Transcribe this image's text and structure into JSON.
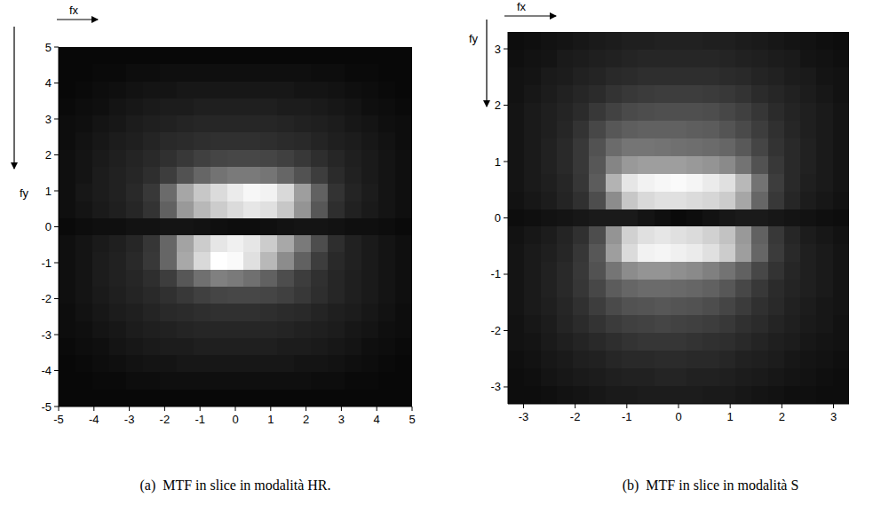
{
  "chart_data": [
    {
      "type": "heatmap",
      "title": "(a)  MTF in slice in modalità HR.",
      "x_label": "fx",
      "y_label": "fy",
      "xlim": [
        -5,
        5
      ],
      "ylim": [
        -5,
        5
      ],
      "xticks": [
        -5,
        -4,
        -3,
        -2,
        -1,
        0,
        1,
        2,
        3,
        4,
        5
      ],
      "yticks": [
        -5,
        -4,
        -3,
        -2,
        -1,
        0,
        1,
        2,
        3,
        4,
        5
      ],
      "cells": [
        [
          0.03,
          0.03,
          0.03,
          0.03,
          0.03,
          0.03,
          0.03,
          0.03,
          0.03,
          0.03,
          0.03,
          0.03,
          0.03,
          0.03,
          0.03,
          0.03,
          0.03,
          0.03,
          0.03,
          0.03,
          0.03
        ],
        [
          0.03,
          0.03,
          0.04,
          0.04,
          0.05,
          0.05,
          0.06,
          0.06,
          0.06,
          0.06,
          0.06,
          0.06,
          0.06,
          0.06,
          0.06,
          0.05,
          0.05,
          0.04,
          0.04,
          0.03,
          0.03
        ],
        [
          0.03,
          0.04,
          0.05,
          0.06,
          0.07,
          0.08,
          0.08,
          0.09,
          0.09,
          0.09,
          0.09,
          0.09,
          0.09,
          0.09,
          0.08,
          0.08,
          0.07,
          0.06,
          0.05,
          0.04,
          0.03
        ],
        [
          0.04,
          0.05,
          0.06,
          0.08,
          0.09,
          0.1,
          0.11,
          0.11,
          0.12,
          0.12,
          0.12,
          0.12,
          0.12,
          0.11,
          0.11,
          0.1,
          0.09,
          0.08,
          0.06,
          0.05,
          0.04
        ],
        [
          0.05,
          0.06,
          0.08,
          0.09,
          0.11,
          0.12,
          0.13,
          0.14,
          0.15,
          0.15,
          0.15,
          0.15,
          0.15,
          0.14,
          0.13,
          0.12,
          0.11,
          0.09,
          0.08,
          0.06,
          0.05
        ],
        [
          0.05,
          0.07,
          0.09,
          0.11,
          0.12,
          0.14,
          0.16,
          0.17,
          0.18,
          0.19,
          0.19,
          0.19,
          0.18,
          0.17,
          0.16,
          0.14,
          0.12,
          0.11,
          0.09,
          0.07,
          0.05
        ],
        [
          0.06,
          0.08,
          0.1,
          0.12,
          0.14,
          0.16,
          0.19,
          0.22,
          0.25,
          0.27,
          0.28,
          0.28,
          0.27,
          0.25,
          0.22,
          0.18,
          0.15,
          0.12,
          0.1,
          0.08,
          0.06
        ],
        [
          0.06,
          0.08,
          0.11,
          0.13,
          0.15,
          0.18,
          0.24,
          0.32,
          0.4,
          0.45,
          0.48,
          0.48,
          0.46,
          0.4,
          0.32,
          0.24,
          0.17,
          0.13,
          0.1,
          0.08,
          0.06
        ],
        [
          0.06,
          0.09,
          0.11,
          0.13,
          0.16,
          0.22,
          0.42,
          0.65,
          0.78,
          0.86,
          0.92,
          0.97,
          0.95,
          0.85,
          0.62,
          0.38,
          0.2,
          0.14,
          0.11,
          0.08,
          0.06
        ],
        [
          0.06,
          0.08,
          0.1,
          0.12,
          0.15,
          0.2,
          0.38,
          0.6,
          0.72,
          0.8,
          0.86,
          0.9,
          0.88,
          0.78,
          0.58,
          0.34,
          0.18,
          0.13,
          0.1,
          0.08,
          0.06
        ],
        [
          0.04,
          0.05,
          0.06,
          0.06,
          0.07,
          0.07,
          0.08,
          0.08,
          0.07,
          0.06,
          0.05,
          0.05,
          0.06,
          0.07,
          0.08,
          0.08,
          0.07,
          0.06,
          0.06,
          0.05,
          0.04
        ],
        [
          0.06,
          0.08,
          0.1,
          0.12,
          0.15,
          0.21,
          0.4,
          0.64,
          0.8,
          0.9,
          0.94,
          0.9,
          0.8,
          0.66,
          0.48,
          0.3,
          0.18,
          0.13,
          0.1,
          0.08,
          0.06
        ],
        [
          0.06,
          0.08,
          0.11,
          0.13,
          0.16,
          0.22,
          0.4,
          0.66,
          0.85,
          1.0,
          0.98,
          0.88,
          0.72,
          0.55,
          0.38,
          0.24,
          0.16,
          0.13,
          0.1,
          0.08,
          0.06
        ],
        [
          0.06,
          0.08,
          0.11,
          0.13,
          0.15,
          0.18,
          0.24,
          0.34,
          0.44,
          0.5,
          0.48,
          0.44,
          0.38,
          0.3,
          0.24,
          0.19,
          0.15,
          0.12,
          0.1,
          0.08,
          0.06
        ],
        [
          0.06,
          0.08,
          0.1,
          0.12,
          0.14,
          0.16,
          0.19,
          0.22,
          0.25,
          0.27,
          0.28,
          0.28,
          0.27,
          0.25,
          0.22,
          0.18,
          0.15,
          0.12,
          0.1,
          0.08,
          0.06
        ],
        [
          0.05,
          0.07,
          0.09,
          0.11,
          0.12,
          0.14,
          0.16,
          0.17,
          0.18,
          0.19,
          0.19,
          0.19,
          0.18,
          0.17,
          0.16,
          0.14,
          0.12,
          0.11,
          0.09,
          0.07,
          0.05
        ],
        [
          0.05,
          0.06,
          0.08,
          0.09,
          0.11,
          0.12,
          0.13,
          0.14,
          0.15,
          0.15,
          0.15,
          0.15,
          0.15,
          0.14,
          0.13,
          0.12,
          0.11,
          0.09,
          0.08,
          0.06,
          0.05
        ],
        [
          0.04,
          0.05,
          0.06,
          0.08,
          0.09,
          0.1,
          0.11,
          0.11,
          0.12,
          0.12,
          0.12,
          0.12,
          0.12,
          0.11,
          0.11,
          0.1,
          0.09,
          0.08,
          0.06,
          0.05,
          0.04
        ],
        [
          0.03,
          0.04,
          0.05,
          0.06,
          0.07,
          0.08,
          0.08,
          0.09,
          0.09,
          0.09,
          0.09,
          0.09,
          0.09,
          0.09,
          0.08,
          0.08,
          0.07,
          0.06,
          0.05,
          0.04,
          0.03
        ],
        [
          0.03,
          0.03,
          0.04,
          0.04,
          0.05,
          0.05,
          0.06,
          0.06,
          0.06,
          0.06,
          0.06,
          0.06,
          0.06,
          0.06,
          0.06,
          0.05,
          0.05,
          0.04,
          0.04,
          0.03,
          0.03
        ],
        [
          0.03,
          0.03,
          0.03,
          0.03,
          0.03,
          0.03,
          0.03,
          0.03,
          0.03,
          0.03,
          0.03,
          0.03,
          0.03,
          0.03,
          0.03,
          0.03,
          0.03,
          0.03,
          0.03,
          0.03,
          0.03
        ]
      ]
    },
    {
      "type": "heatmap",
      "title": "(b)  MTF in slice in modalità S",
      "x_label": "fx",
      "y_label": "fy",
      "xlim": [
        -3.3,
        3.3
      ],
      "ylim": [
        -3.3,
        3.3
      ],
      "xticks": [
        -3,
        -2,
        -1,
        0,
        1,
        2,
        3
      ],
      "yticks": [
        -3,
        -2,
        -1,
        0,
        1,
        2,
        3
      ],
      "cells": [
        [
          0.05,
          0.06,
          0.07,
          0.08,
          0.09,
          0.1,
          0.11,
          0.12,
          0.12,
          0.13,
          0.13,
          0.13,
          0.12,
          0.12,
          0.11,
          0.1,
          0.09,
          0.08,
          0.07,
          0.06,
          0.05
        ],
        [
          0.06,
          0.07,
          0.08,
          0.1,
          0.11,
          0.12,
          0.13,
          0.14,
          0.15,
          0.15,
          0.15,
          0.15,
          0.15,
          0.14,
          0.13,
          0.12,
          0.11,
          0.1,
          0.08,
          0.07,
          0.06
        ],
        [
          0.07,
          0.08,
          0.1,
          0.11,
          0.13,
          0.14,
          0.16,
          0.17,
          0.18,
          0.18,
          0.18,
          0.18,
          0.18,
          0.17,
          0.16,
          0.14,
          0.13,
          0.11,
          0.1,
          0.08,
          0.07
        ],
        [
          0.07,
          0.09,
          0.11,
          0.13,
          0.15,
          0.17,
          0.2,
          0.22,
          0.23,
          0.24,
          0.24,
          0.24,
          0.23,
          0.22,
          0.2,
          0.17,
          0.15,
          0.13,
          0.11,
          0.09,
          0.07
        ],
        [
          0.08,
          0.1,
          0.12,
          0.14,
          0.17,
          0.22,
          0.26,
          0.29,
          0.3,
          0.31,
          0.31,
          0.31,
          0.3,
          0.28,
          0.25,
          0.21,
          0.17,
          0.14,
          0.12,
          0.1,
          0.08
        ],
        [
          0.08,
          0.1,
          0.12,
          0.15,
          0.2,
          0.28,
          0.34,
          0.37,
          0.38,
          0.38,
          0.38,
          0.37,
          0.36,
          0.33,
          0.29,
          0.24,
          0.19,
          0.15,
          0.12,
          0.1,
          0.08
        ],
        [
          0.08,
          0.1,
          0.13,
          0.16,
          0.22,
          0.32,
          0.42,
          0.46,
          0.46,
          0.45,
          0.44,
          0.43,
          0.42,
          0.4,
          0.35,
          0.27,
          0.2,
          0.16,
          0.13,
          0.1,
          0.08
        ],
        [
          0.08,
          0.1,
          0.13,
          0.16,
          0.22,
          0.34,
          0.52,
          0.6,
          0.62,
          0.62,
          0.62,
          0.6,
          0.58,
          0.54,
          0.45,
          0.32,
          0.22,
          0.16,
          0.13,
          0.1,
          0.08
        ],
        [
          0.08,
          0.1,
          0.12,
          0.15,
          0.21,
          0.36,
          0.7,
          0.9,
          0.95,
          0.97,
          0.98,
          0.96,
          0.92,
          0.88,
          0.72,
          0.45,
          0.24,
          0.16,
          0.12,
          0.1,
          0.08
        ],
        [
          0.07,
          0.09,
          0.11,
          0.14,
          0.19,
          0.3,
          0.55,
          0.78,
          0.85,
          0.88,
          0.88,
          0.86,
          0.84,
          0.8,
          0.65,
          0.4,
          0.22,
          0.15,
          0.11,
          0.09,
          0.07
        ],
        [
          0.05,
          0.06,
          0.07,
          0.08,
          0.09,
          0.1,
          0.1,
          0.1,
          0.08,
          0.06,
          0.04,
          0.05,
          0.07,
          0.09,
          0.1,
          0.1,
          0.09,
          0.08,
          0.07,
          0.06,
          0.05
        ],
        [
          0.07,
          0.09,
          0.11,
          0.14,
          0.19,
          0.3,
          0.58,
          0.82,
          0.88,
          0.9,
          0.88,
          0.86,
          0.82,
          0.76,
          0.6,
          0.38,
          0.22,
          0.15,
          0.11,
          0.09,
          0.07
        ],
        [
          0.08,
          0.1,
          0.12,
          0.15,
          0.21,
          0.34,
          0.62,
          0.86,
          0.95,
          0.96,
          0.94,
          0.92,
          0.88,
          0.8,
          0.62,
          0.4,
          0.23,
          0.16,
          0.12,
          0.1,
          0.08
        ],
        [
          0.08,
          0.1,
          0.13,
          0.16,
          0.22,
          0.32,
          0.46,
          0.55,
          0.58,
          0.58,
          0.56,
          0.54,
          0.5,
          0.45,
          0.38,
          0.28,
          0.2,
          0.15,
          0.12,
          0.1,
          0.08
        ],
        [
          0.08,
          0.1,
          0.13,
          0.16,
          0.21,
          0.28,
          0.36,
          0.4,
          0.42,
          0.42,
          0.41,
          0.4,
          0.38,
          0.34,
          0.28,
          0.22,
          0.17,
          0.14,
          0.12,
          0.1,
          0.08
        ],
        [
          0.08,
          0.1,
          0.12,
          0.15,
          0.19,
          0.24,
          0.29,
          0.32,
          0.33,
          0.34,
          0.33,
          0.32,
          0.3,
          0.27,
          0.23,
          0.19,
          0.16,
          0.13,
          0.11,
          0.09,
          0.08
        ],
        [
          0.07,
          0.09,
          0.11,
          0.14,
          0.17,
          0.2,
          0.23,
          0.25,
          0.26,
          0.27,
          0.26,
          0.25,
          0.24,
          0.22,
          0.19,
          0.17,
          0.14,
          0.12,
          0.1,
          0.09,
          0.07
        ],
        [
          0.07,
          0.08,
          0.1,
          0.12,
          0.14,
          0.16,
          0.18,
          0.2,
          0.21,
          0.21,
          0.21,
          0.2,
          0.19,
          0.18,
          0.16,
          0.14,
          0.12,
          0.11,
          0.09,
          0.08,
          0.07
        ],
        [
          0.06,
          0.07,
          0.09,
          0.1,
          0.12,
          0.13,
          0.15,
          0.16,
          0.16,
          0.17,
          0.17,
          0.16,
          0.16,
          0.15,
          0.13,
          0.12,
          0.11,
          0.09,
          0.08,
          0.07,
          0.06
        ],
        [
          0.05,
          0.06,
          0.08,
          0.09,
          0.1,
          0.11,
          0.12,
          0.13,
          0.13,
          0.14,
          0.14,
          0.13,
          0.13,
          0.12,
          0.11,
          0.1,
          0.09,
          0.08,
          0.07,
          0.06,
          0.05
        ],
        [
          0.05,
          0.05,
          0.06,
          0.07,
          0.08,
          0.09,
          0.1,
          0.1,
          0.11,
          0.11,
          0.11,
          0.11,
          0.1,
          0.1,
          0.09,
          0.08,
          0.07,
          0.06,
          0.06,
          0.05,
          0.05
        ]
      ]
    }
  ]
}
